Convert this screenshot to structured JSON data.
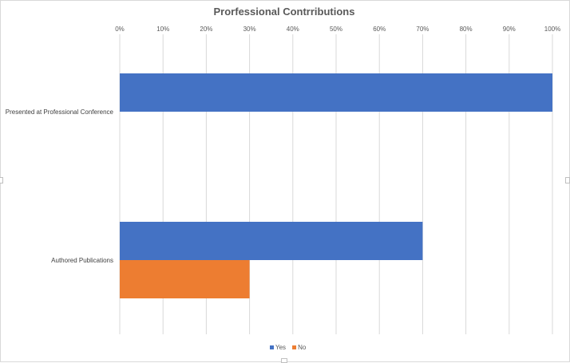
{
  "chart_data": {
    "type": "bar",
    "orientation": "horizontal",
    "title": "Prorfessional Contrributions",
    "xlabel": "",
    "ylabel": "",
    "xlim": [
      0,
      100
    ],
    "tick_labels": [
      "0%",
      "10%",
      "20%",
      "30%",
      "40%",
      "50%",
      "60%",
      "70%",
      "80%",
      "90%",
      "100%"
    ],
    "categories": [
      "Presented at Professional Conference",
      "Authored Publications"
    ],
    "series": [
      {
        "name": "Yes",
        "color": "#4472c4",
        "values": [
          100,
          70
        ]
      },
      {
        "name": "No",
        "color": "#ed7d31",
        "values": [
          0,
          30
        ]
      }
    ],
    "grid": true,
    "legend_position": "bottom"
  }
}
